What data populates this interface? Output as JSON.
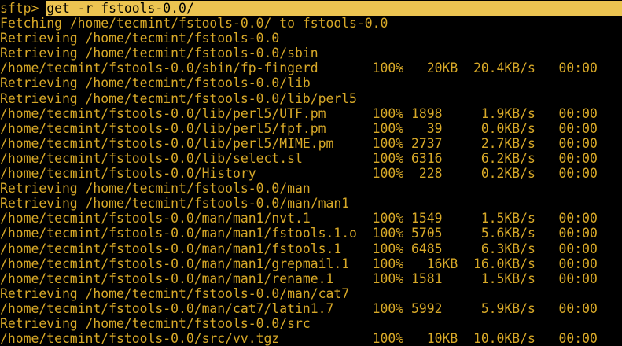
{
  "terminal": {
    "title": "sftp recursive get session",
    "colors": {
      "background": "#000000",
      "foreground": "#d8a928",
      "selection_background": "#ecc451",
      "selection_text": "#000000"
    },
    "prompt_label": "sftp> ",
    "command": "get -r fstools-0.0/",
    "lines": [
      {
        "type": "command",
        "prompt": "sftp> ",
        "command": "get -r fstools-0.0/",
        "selected": true
      },
      {
        "type": "output",
        "text": "Fetching /home/tecmint/fstools-0.0/ to fstools-0.0"
      },
      {
        "type": "output",
        "text": "Retrieving /home/tecmint/fstools-0.0"
      },
      {
        "type": "output",
        "text": "Retrieving /home/tecmint/fstools-0.0/sbin"
      },
      {
        "type": "output",
        "text": "/home/tecmint/fstools-0.0/sbin/fp-fingerd       100%   20KB  20.4KB/s   00:00"
      },
      {
        "type": "output",
        "text": "Retrieving /home/tecmint/fstools-0.0/lib"
      },
      {
        "type": "output",
        "text": "Retrieving /home/tecmint/fstools-0.0/lib/perl5"
      },
      {
        "type": "output",
        "text": "/home/tecmint/fstools-0.0/lib/perl5/UTF.pm      100% 1898     1.9KB/s   00:00"
      },
      {
        "type": "output",
        "text": "/home/tecmint/fstools-0.0/lib/perl5/fpf.pm      100%   39     0.0KB/s   00:00"
      },
      {
        "type": "output",
        "text": "/home/tecmint/fstools-0.0/lib/perl5/MIME.pm     100% 2737     2.7KB/s   00:00"
      },
      {
        "type": "output",
        "text": "/home/tecmint/fstools-0.0/lib/select.sl         100% 6316     6.2KB/s   00:00"
      },
      {
        "type": "output",
        "text": "/home/tecmint/fstools-0.0/History               100%  228     0.2KB/s   00:00"
      },
      {
        "type": "output",
        "text": "Retrieving /home/tecmint/fstools-0.0/man"
      },
      {
        "type": "output",
        "text": "Retrieving /home/tecmint/fstools-0.0/man/man1"
      },
      {
        "type": "output",
        "text": "/home/tecmint/fstools-0.0/man/man1/nvt.1        100% 1549     1.5KB/s   00:00"
      },
      {
        "type": "output",
        "text": "/home/tecmint/fstools-0.0/man/man1/fstools.1.o  100% 5705     5.6KB/s   00:00"
      },
      {
        "type": "output",
        "text": "/home/tecmint/fstools-0.0/man/man1/fstools.1    100% 6485     6.3KB/s   00:00"
      },
      {
        "type": "output",
        "text": "/home/tecmint/fstools-0.0/man/man1/grepmail.1   100%   16KB  16.0KB/s   00:00"
      },
      {
        "type": "output",
        "text": "/home/tecmint/fstools-0.0/man/man1/rename.1     100% 1581     1.5KB/s   00:00"
      },
      {
        "type": "output",
        "text": "Retrieving /home/tecmint/fstools-0.0/man/cat7"
      },
      {
        "type": "output",
        "text": "/home/tecmint/fstools-0.0/man/cat7/latin1.7     100% 5992     5.9KB/s   00:00"
      },
      {
        "type": "output",
        "text": "Retrieving /home/tecmint/fstools-0.0/src"
      },
      {
        "type": "output",
        "text": "/home/tecmint/fstools-0.0/src/vv.tgz            100%   10KB  10.0KB/s   00:00"
      }
    ]
  }
}
